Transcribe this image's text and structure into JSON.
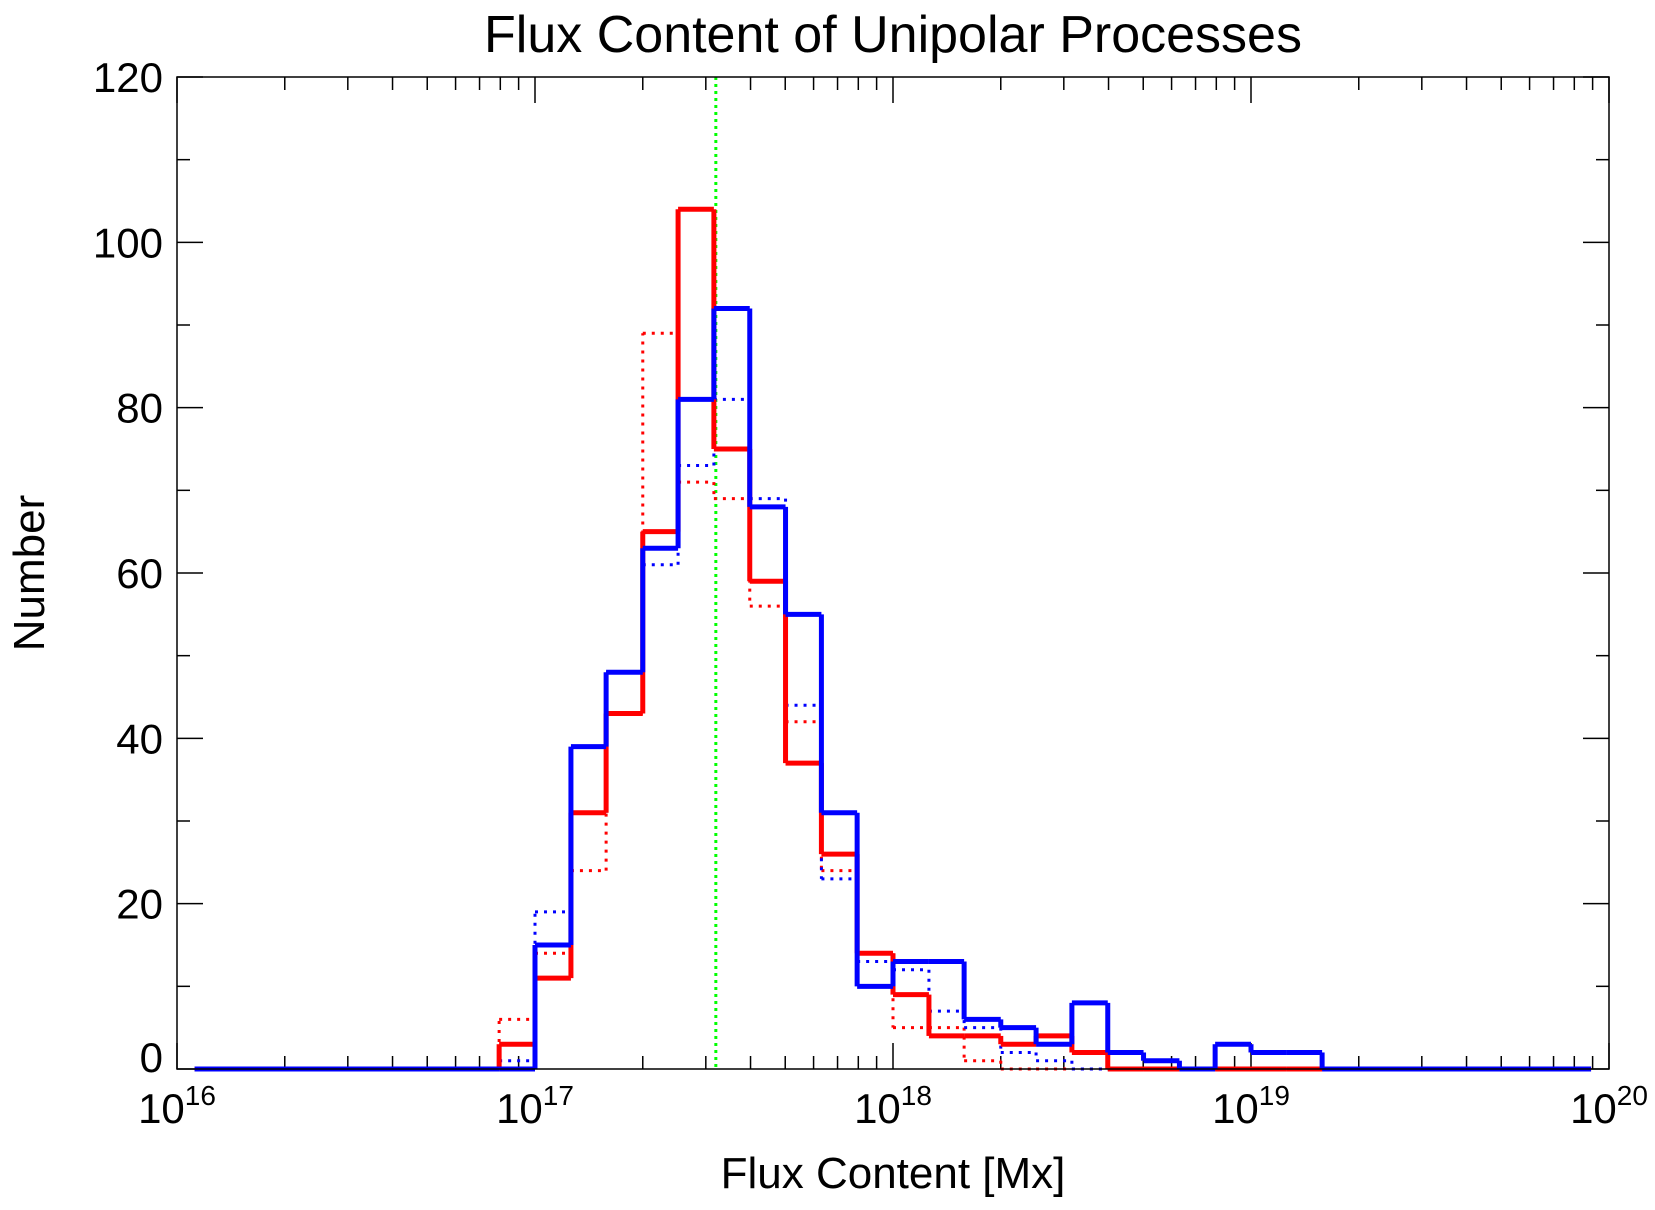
{
  "chart_data": {
    "type": "histogram",
    "title": "Flux Content of Unipolar Processes",
    "x_label": "Flux Content [Mx]",
    "y_label": "Number",
    "x_log": true,
    "xlim": [
      1e+16,
      1e+20
    ],
    "xticks": [
      {
        "value": 1e+16,
        "label": "10",
        "exponent": "16"
      },
      {
        "value": 1e+17,
        "label": "10",
        "exponent": "17"
      },
      {
        "value": 1e+18,
        "label": "10",
        "exponent": "18"
      },
      {
        "value": 1e+19,
        "label": "10",
        "exponent": "19"
      },
      {
        "value": 1e+20,
        "label": "10",
        "exponent": "20"
      }
    ],
    "xminorticks": [
      2e+16,
      3e+16,
      4e+16,
      5e+16,
      6e+16,
      7e+16,
      8e+16,
      9e+16,
      2e+17,
      3e+17,
      4e+17,
      5e+17,
      6e+17,
      7e+17,
      8e+17,
      9e+17,
      2e+18,
      3e+18,
      4e+18,
      5e+18,
      6e+18,
      7e+18,
      8e+18,
      9e+18,
      2e+19,
      3e+19,
      4e+19,
      5e+19,
      6e+19,
      7e+19,
      8e+19,
      9e+19
    ],
    "ylim": [
      0,
      120
    ],
    "yticks": [
      0,
      20,
      40,
      60,
      80,
      100,
      120
    ],
    "yminorticks": [
      10,
      30,
      50,
      70,
      90,
      110
    ],
    "bins": [
      1.12e+16,
      7.94e+16,
      1e+17,
      1.26e+17,
      1.58e+17,
      2e+17,
      2.51e+17,
      3.16e+17,
      3.98e+17,
      5.01e+17,
      6.31e+17,
      7.94e+17,
      1e+18,
      1.26e+18,
      1.58e+18,
      2e+18,
      2.51e+18,
      3.16e+18,
      3.98e+18,
      5.01e+18,
      6.31e+18,
      7.94e+18,
      1e+19,
      1.26e+19,
      1.58e+19,
      8.91e+19
    ],
    "series": [
      {
        "color": "#ff0000",
        "style": "dotted",
        "values": [
          0,
          6,
          14,
          24,
          43,
          89,
          71,
          69,
          56,
          42,
          24,
          14,
          5,
          5,
          1,
          0,
          0,
          0,
          0,
          0,
          0,
          0,
          0,
          0,
          0
        ]
      },
      {
        "color": "#0000ff",
        "style": "dotted",
        "values": [
          0,
          1,
          19,
          31,
          48,
          61,
          73,
          81,
          69,
          44,
          23,
          13,
          12,
          7,
          5,
          2,
          1,
          0,
          0,
          0,
          0,
          0,
          0,
          0,
          0
        ]
      },
      {
        "color": "#ff0000",
        "style": "solid",
        "values": [
          0,
          3,
          11,
          31,
          43,
          65,
          104,
          75,
          59,
          37,
          26,
          14,
          9,
          4,
          4,
          3,
          4,
          2,
          0,
          0,
          0,
          0,
          0,
          0,
          0
        ]
      },
      {
        "color": "#0000ff",
        "style": "solid",
        "values": [
          0,
          0,
          15,
          39,
          48,
          63,
          81,
          92,
          68,
          55,
          31,
          10,
          13,
          13,
          6,
          5,
          3,
          8,
          2,
          1,
          0,
          3,
          2,
          2,
          0
        ]
      }
    ],
    "vline": {
      "value": 3.2e+17,
      "color": "#00ff00"
    }
  }
}
